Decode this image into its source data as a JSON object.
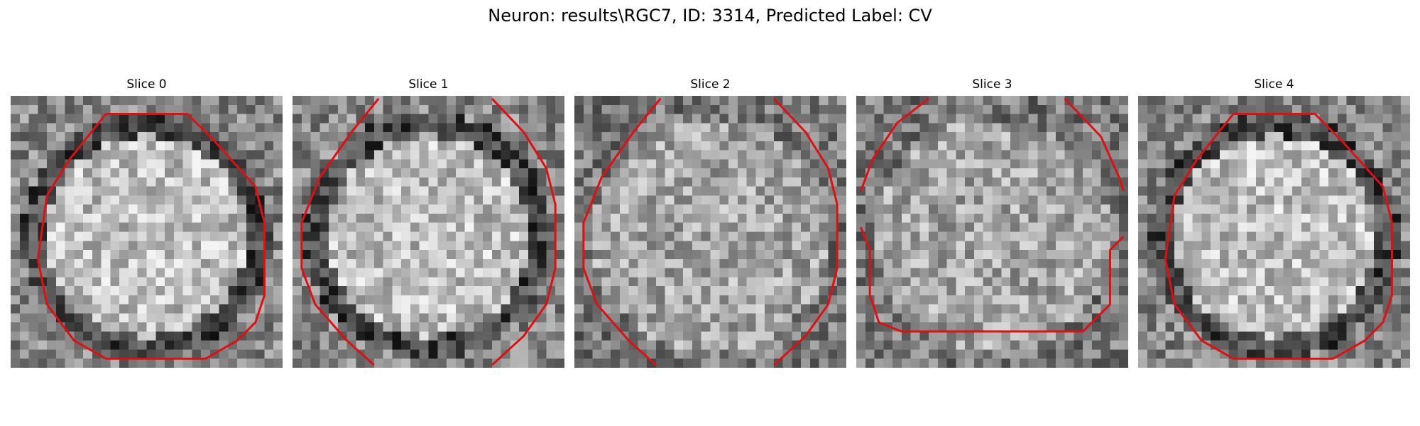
{
  "figure": {
    "suptitle": "Neuron: results\\RGC7, ID: 3314, Predicted Label: CV"
  },
  "contour_color": "#e01010",
  "panels": [
    {
      "title": "Slice 0",
      "seed": 11,
      "dark_ring": true,
      "contour": "full"
    },
    {
      "title": "Slice 1",
      "seed": 23,
      "dark_ring": true,
      "contour": "split"
    },
    {
      "title": "Slice 2",
      "seed": 37,
      "dark_ring": false,
      "contour": "split"
    },
    {
      "title": "Slice 3",
      "seed": 41,
      "dark_ring": false,
      "contour": "u-shape"
    },
    {
      "title": "Slice 4",
      "seed": 53,
      "dark_ring": true,
      "contour": "full"
    }
  ]
}
